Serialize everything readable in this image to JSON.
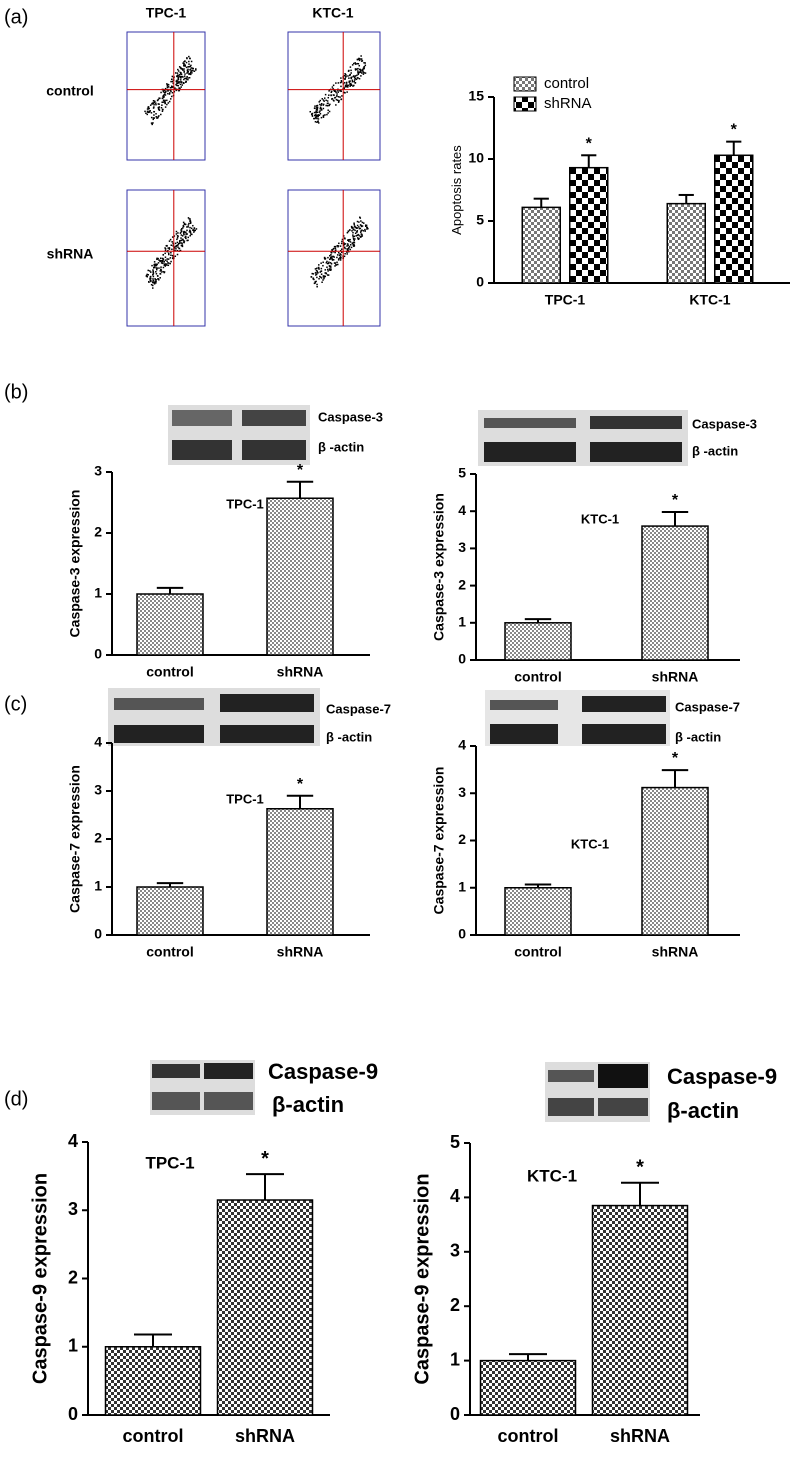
{
  "panel_labels": [
    "(a)",
    "(b)",
    "(c)",
    "(d)"
  ],
  "flow": {
    "columns": [
      "TPC-1",
      "KTC-1"
    ],
    "rows": [
      "control",
      "shRNA"
    ]
  },
  "blots": [
    {
      "labels": [
        "Caspase-3",
        "β -actin"
      ]
    },
    {
      "labels": [
        "Caspase-3",
        "β -actin"
      ]
    },
    {
      "labels": [
        "Caspase-7",
        "β -actin"
      ]
    },
    {
      "labels": [
        "Caspase-7",
        "β -actin"
      ]
    },
    {
      "labels": [
        "Caspase-9",
        "β-actin"
      ]
    },
    {
      "labels": [
        "Caspase-9",
        "β-actin"
      ]
    }
  ],
  "chart_data": [
    {
      "type": "bar",
      "categories": [
        "TPC-1",
        "KTC-1"
      ],
      "series": [
        {
          "name": "control",
          "color": "#777777",
          "values": [
            6.1,
            6.4
          ],
          "errors": [
            0.7,
            0.7
          ]
        },
        {
          "name": "shRNA",
          "color": "#000000",
          "values": [
            9.3,
            10.3
          ],
          "errors": [
            1.0,
            1.1
          ],
          "annotations": [
            "*",
            "*"
          ]
        }
      ],
      "ylabel": "Apoptosis rates",
      "ylim": [
        0,
        15
      ],
      "yticks": [
        0,
        5,
        10,
        15
      ]
    },
    {
      "type": "bar",
      "title": "TPC-1",
      "categories": [
        "control",
        "shRNA"
      ],
      "values": [
        1.0,
        2.57
      ],
      "errors": [
        0.1,
        0.27
      ],
      "annotations": [
        null,
        "*"
      ],
      "color": "#888888",
      "ylabel": "Caspase-3 expression",
      "ylim": [
        0,
        3
      ],
      "yticks": [
        0,
        1,
        2,
        3
      ]
    },
    {
      "type": "bar",
      "title": "KTC-1",
      "categories": [
        "control",
        "shRNA"
      ],
      "values": [
        1.0,
        3.6
      ],
      "errors": [
        0.1,
        0.38
      ],
      "annotations": [
        null,
        "*"
      ],
      "color": "#888888",
      "ylabel": "Caspase-3 expression",
      "ylim": [
        0,
        5
      ],
      "yticks": [
        0,
        1,
        2,
        3,
        4,
        5
      ]
    },
    {
      "type": "bar",
      "title": "TPC-1",
      "categories": [
        "control",
        "shRNA"
      ],
      "values": [
        1.0,
        2.63
      ],
      "errors": [
        0.08,
        0.27
      ],
      "annotations": [
        null,
        "*"
      ],
      "color": "#888888",
      "ylabel": "Caspase-7 expression",
      "ylim": [
        0,
        4
      ],
      "yticks": [
        0,
        1,
        2,
        3,
        4
      ]
    },
    {
      "type": "bar",
      "title": "KTC-1",
      "categories": [
        "control",
        "shRNA"
      ],
      "values": [
        1.0,
        3.12
      ],
      "errors": [
        0.07,
        0.37
      ],
      "annotations": [
        null,
        "*"
      ],
      "color": "#888888",
      "ylabel": "Caspase-7 expression",
      "ylim": [
        0,
        4
      ],
      "yticks": [
        0,
        1,
        2,
        3,
        4
      ]
    },
    {
      "type": "bar",
      "title": "TPC-1",
      "categories": [
        "control",
        "shRNA"
      ],
      "values": [
        1.0,
        3.15
      ],
      "errors": [
        0.18,
        0.38
      ],
      "annotations": [
        null,
        "*"
      ],
      "color": "#333333",
      "ylabel": "Caspase-9 expression",
      "ylim": [
        0,
        4
      ],
      "yticks": [
        0,
        1,
        2,
        3,
        4
      ]
    },
    {
      "type": "bar",
      "title": "KTC-1",
      "categories": [
        "control",
        "shRNA"
      ],
      "values": [
        1.0,
        3.85
      ],
      "errors": [
        0.12,
        0.42
      ],
      "annotations": [
        null,
        "*"
      ],
      "color": "#333333",
      "ylabel": "Caspase-9 expression",
      "ylim": [
        0,
        5
      ],
      "yticks": [
        0,
        1,
        2,
        3,
        4,
        5
      ]
    }
  ]
}
